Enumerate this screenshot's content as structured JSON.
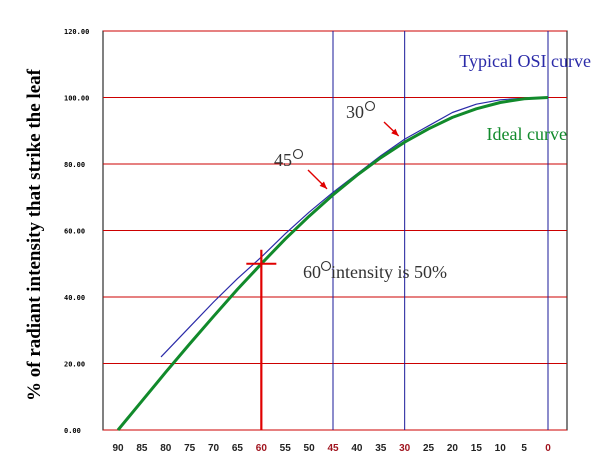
{
  "chart_data": {
    "type": "line",
    "ylabel": "% of radiant intensity that strike the leaf",
    "xlabel": "",
    "x_reversed": true,
    "xlim": [
      90,
      0
    ],
    "ylim": [
      0,
      120
    ],
    "y_ticks": [
      "0.00",
      "20.00",
      "40.00",
      "60.00",
      "80.00",
      "100.00",
      "120.00"
    ],
    "x_ticks": [
      90,
      85,
      80,
      75,
      70,
      65,
      60,
      55,
      50,
      45,
      40,
      35,
      30,
      25,
      20,
      15,
      10,
      5,
      0
    ],
    "x_ticks_highlighted": [
      60,
      45,
      30,
      0
    ],
    "grid": {
      "horizontal_color": "#cc0000",
      "vertical_color": "#1a1a9a",
      "vertical_at": [
        45,
        30,
        0
      ]
    },
    "series": [
      {
        "name": "Ideal curve",
        "color": "#118a2b",
        "x": [
          90,
          85,
          80,
          75,
          70,
          65,
          60,
          55,
          50,
          45,
          40,
          35,
          30,
          25,
          20,
          15,
          10,
          5,
          0
        ],
        "y": [
          0.0,
          8.7,
          17.4,
          25.9,
          34.2,
          42.3,
          50.0,
          57.4,
          64.3,
          70.7,
          76.6,
          81.9,
          86.6,
          90.6,
          94.0,
          96.6,
          98.5,
          99.6,
          100.0
        ]
      },
      {
        "name": "Typical OSI curve",
        "color": "#2a2aa8",
        "x": [
          81,
          80,
          75,
          70,
          65,
          60,
          55,
          50,
          45,
          40,
          35,
          30,
          25,
          20,
          15,
          10,
          5,
          0
        ],
        "y": [
          22.0,
          23.5,
          31.0,
          38.5,
          45.5,
          52.0,
          59.0,
          65.5,
          71.5,
          77.0,
          82.5,
          87.5,
          91.5,
          95.5,
          98.0,
          99.3,
          99.8,
          100.0
        ]
      }
    ],
    "annotations": [
      {
        "id": "a30",
        "text": "30",
        "degree": true,
        "points_to": [
          30,
          86.6
        ]
      },
      {
        "id": "a45",
        "text": "45",
        "degree": true,
        "points_to": [
          45,
          70.7
        ]
      },
      {
        "id": "a60",
        "text": " intensity is 50%",
        "prefix": "60",
        "degree": true,
        "marker": [
          60,
          50
        ]
      }
    ]
  }
}
